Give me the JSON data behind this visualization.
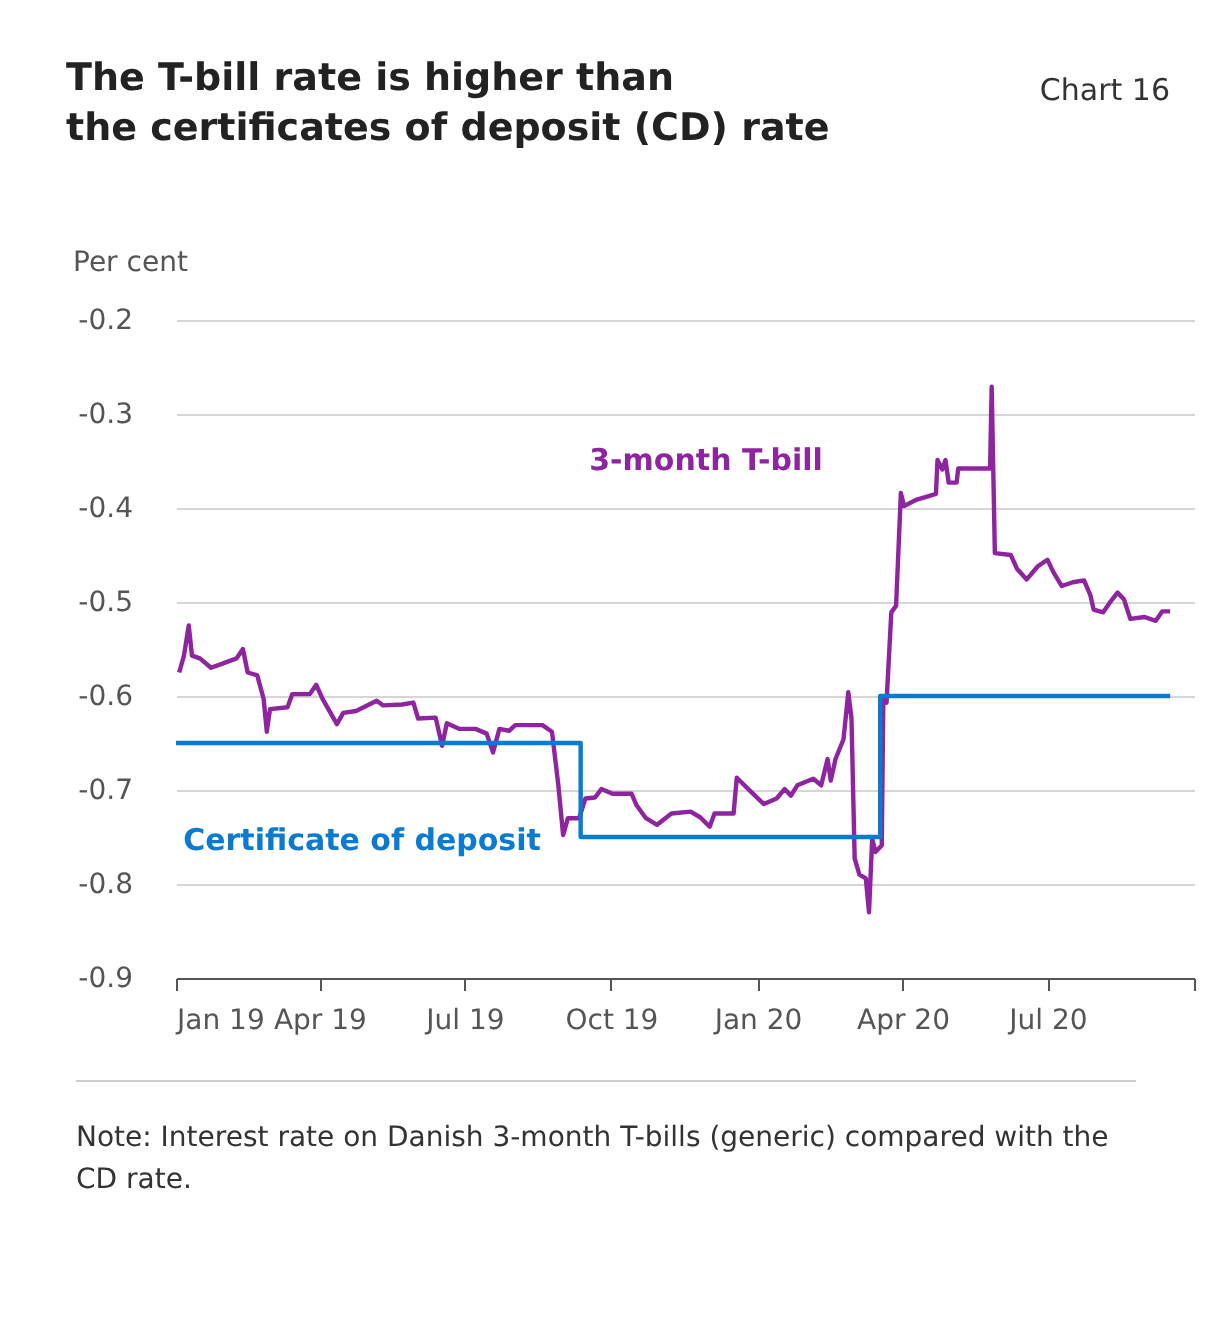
{
  "chart_data": {
    "type": "line",
    "title": "The T-bill rate is higher than\nthe certificates of deposit (CD) rate",
    "ylabel": "Per cent",
    "annotations": [
      "Chart 16",
      "Note: Interest rate on Danish 3-month T-bills (generic) compared with the CD rate."
    ],
    "series": [
      {
        "name": "3-month T-bill",
        "type": "line",
        "color": "#8e24a0",
        "x": [
          "2019-01-03",
          "2019-01-06",
          "2019-01-09",
          "2019-01-11",
          "2019-01-16",
          "2019-01-23",
          "2019-01-31",
          "2019-02-08",
          "2019-02-12",
          "2019-02-15",
          "2019-02-21",
          "2019-02-25",
          "2019-02-27",
          "2019-03-01",
          "2019-03-12",
          "2019-03-15",
          "2019-03-26",
          "2019-03-30",
          "2019-04-03",
          "2019-04-12",
          "2019-04-16",
          "2019-04-24",
          "2019-05-07",
          "2019-05-11",
          "2019-05-23",
          "2019-05-30",
          "2019-06-02",
          "2019-06-13",
          "2019-06-17",
          "2019-06-20",
          "2019-06-28",
          "2019-07-08",
          "2019-07-15",
          "2019-07-19",
          "2019-07-23",
          "2019-07-29",
          "2019-08-02",
          "2019-08-19",
          "2019-08-25",
          "2019-08-29",
          "2019-09-01",
          "2019-09-04",
          "2019-09-11",
          "2019-09-15",
          "2019-09-21",
          "2019-09-25",
          "2019-10-02",
          "2019-10-14",
          "2019-10-17",
          "2019-10-23",
          "2019-10-30",
          "2019-11-08",
          "2019-11-20",
          "2019-11-26",
          "2019-12-02",
          "2019-12-05",
          "2019-12-17",
          "2019-12-19",
          "2019-12-28",
          "2020-01-05",
          "2020-01-13",
          "2020-01-18",
          "2020-01-22",
          "2020-01-26",
          "2020-02-05",
          "2020-02-10",
          "2020-02-14",
          "2020-02-16",
          "2020-02-19",
          "2020-02-24",
          "2020-02-27",
          "2020-02-29",
          "2020-03-02",
          "2020-03-05",
          "2020-03-09",
          "2020-03-11",
          "2020-03-13",
          "2020-03-15",
          "2020-03-19",
          "2020-03-20",
          "2020-03-22",
          "2020-03-25",
          "2020-03-28",
          "2020-03-31",
          "2020-04-02",
          "2020-04-10",
          "2020-04-18",
          "2020-04-22",
          "2020-04-23",
          "2020-04-26",
          "2020-04-28",
          "2020-04-30",
          "2020-05-05",
          "2020-05-06",
          "2020-05-26",
          "2020-05-27",
          "2020-05-29",
          "2020-06-08",
          "2020-06-12",
          "2020-06-18",
          "2020-06-25",
          "2020-07-01",
          "2020-07-05",
          "2020-07-10",
          "2020-07-17",
          "2020-07-24",
          "2020-07-28",
          "2020-07-30",
          "2020-08-05",
          "2020-08-09",
          "2020-08-14",
          "2020-08-18",
          "2020-08-22",
          "2020-08-31",
          "2020-09-07",
          "2020-09-11",
          "2020-09-16"
        ],
        "values": [
          -0.575,
          -0.557,
          -0.525,
          -0.557,
          -0.56,
          -0.57,
          -0.565,
          -0.56,
          -0.55,
          -0.575,
          -0.578,
          -0.603,
          -0.638,
          -0.614,
          -0.612,
          -0.598,
          -0.598,
          -0.588,
          -0.603,
          -0.63,
          -0.618,
          -0.616,
          -0.605,
          -0.61,
          -0.609,
          -0.607,
          -0.624,
          -0.623,
          -0.653,
          -0.629,
          -0.635,
          -0.635,
          -0.64,
          -0.66,
          -0.635,
          -0.637,
          -0.631,
          -0.631,
          -0.638,
          -0.695,
          -0.748,
          -0.73,
          -0.73,
          -0.709,
          -0.708,
          -0.699,
          -0.704,
          -0.704,
          -0.716,
          -0.73,
          -0.737,
          -0.725,
          -0.723,
          -0.729,
          -0.739,
          -0.725,
          -0.725,
          -0.687,
          -0.702,
          -0.715,
          -0.709,
          -0.699,
          -0.706,
          -0.695,
          -0.688,
          -0.695,
          -0.667,
          -0.69,
          -0.667,
          -0.646,
          -0.596,
          -0.624,
          -0.773,
          -0.79,
          -0.794,
          -0.83,
          -0.752,
          -0.766,
          -0.759,
          -0.603,
          -0.607,
          -0.511,
          -0.504,
          -0.384,
          -0.398,
          -0.391,
          -0.387,
          -0.385,
          -0.349,
          -0.359,
          -0.349,
          -0.373,
          -0.373,
          -0.358,
          -0.358,
          -0.271,
          -0.448,
          -0.45,
          -0.465,
          -0.476,
          -0.462,
          -0.455,
          -0.469,
          -0.483,
          -0.479,
          -0.477,
          -0.493,
          -0.508,
          -0.511,
          -0.501,
          -0.49,
          -0.497,
          -0.518,
          -0.516,
          -0.52,
          -0.51,
          -0.51
        ]
      },
      {
        "name": "Certificate of deposit",
        "type": "step",
        "color": "#0a7bd0",
        "x": [
          "2019-01-01",
          "2019-09-12",
          "2020-03-18",
          "2020-09-16"
        ],
        "values": [
          -0.65,
          -0.75,
          -0.6,
          -0.6
        ]
      }
    ],
    "xlim": [
      "2019-01-01",
      "2020-10-01"
    ],
    "xticks": [
      {
        "value": "2019-01-01",
        "label": "Jan 19"
      },
      {
        "value": "2019-04-01",
        "label": "Apr 19"
      },
      {
        "value": "2019-07-01",
        "label": "Jul 19"
      },
      {
        "value": "2019-10-01",
        "label": "Oct 19"
      },
      {
        "value": "2020-01-01",
        "label": "Jan 20"
      },
      {
        "value": "2020-04-01",
        "label": "Apr 20"
      },
      {
        "value": "2020-07-01",
        "label": "Jul 20"
      },
      {
        "value": "2020-10-01",
        "label": null
      }
    ],
    "ylim": [
      -0.9,
      -0.2
    ],
    "yticks": [
      -0.9,
      -0.8,
      -0.7,
      -0.6,
      -0.5,
      -0.4,
      -0.3,
      -0.2
    ],
    "grid": "y",
    "legend": false,
    "marker": "none",
    "line_style": "solid"
  }
}
